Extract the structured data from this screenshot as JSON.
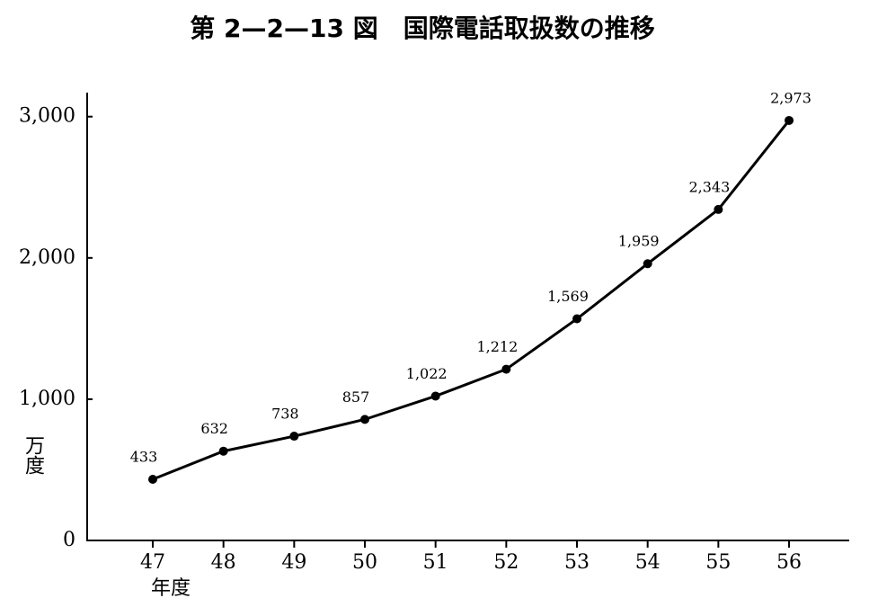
{
  "chart_data": {
    "type": "line",
    "title": "第 2—2—13 図　国際電話取扱数の推移",
    "y_label": "万度",
    "x_label": "年度",
    "categories": [
      "47",
      "48",
      "49",
      "50",
      "51",
      "52",
      "53",
      "54",
      "55",
      "56"
    ],
    "values": [
      433,
      632,
      738,
      857,
      1022,
      1212,
      1569,
      1959,
      2343,
      2973
    ],
    "value_labels": [
      "433",
      "632",
      "738",
      "857",
      "1,022",
      "1,212",
      "1,569",
      "1,959",
      "2,343",
      "2,973"
    ],
    "color": "#000000",
    "ylim": [
      0,
      3170
    ],
    "yticks": [
      0,
      {
        "value": 1000,
        "label": "1,000"
      },
      {
        "value": 2000,
        "label": "2,000"
      },
      {
        "value": 3000,
        "label": "3,000"
      }
    ],
    "grid": false
  }
}
